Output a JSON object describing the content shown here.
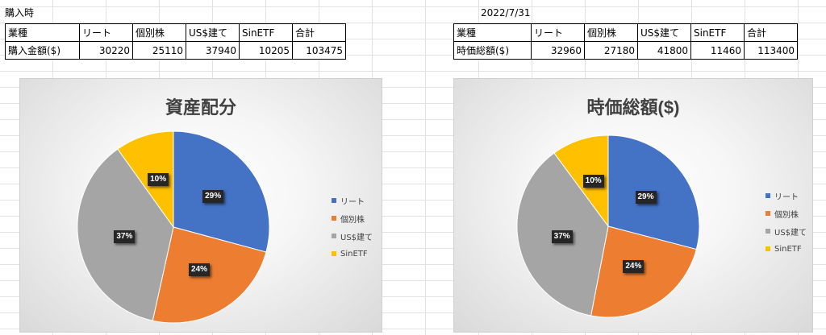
{
  "left": {
    "cell_label": "購入時",
    "table": {
      "headers": [
        "業種",
        "リート",
        "個別株",
        "US$建て",
        "SinETF",
        "合計"
      ],
      "row_label": "購入金額($)",
      "values": [
        "30220",
        "25110",
        "37940",
        "10205",
        "103475"
      ]
    }
  },
  "right": {
    "cell_label": "2022/7/31",
    "table": {
      "headers": [
        "業種",
        "リート",
        "個別株",
        "US$建て",
        "SinETF",
        "合計"
      ],
      "row_label": "時価総額($)",
      "values": [
        "32960",
        "27180",
        "41800",
        "11460",
        "113400"
      ]
    }
  },
  "colors": {
    "リート": "#4472c4",
    "個別株": "#ed7d31",
    "US$建て": "#a5a5a5",
    "SinETF": "#ffc000"
  },
  "chart_data": [
    {
      "type": "pie",
      "title": "資産配分",
      "categories": [
        "リート",
        "個別株",
        "US$建て",
        "SinETF"
      ],
      "values": [
        30220,
        25110,
        37940,
        10205
      ],
      "data_labels": [
        "29%",
        "24%",
        "37%",
        "10%"
      ],
      "legend": [
        "リート",
        "個別株",
        "US$建て",
        "SinETF"
      ],
      "legend_position": "right"
    },
    {
      "type": "pie",
      "title": "時価総額($)",
      "categories": [
        "リート",
        "個別株",
        "US$建て",
        "SinETF"
      ],
      "values": [
        32960,
        27180,
        41800,
        11460
      ],
      "data_labels": [
        "29%",
        "24%",
        "37%",
        "10%"
      ],
      "legend": [
        "リート",
        "個別株",
        "US$建て",
        "SinETF"
      ],
      "legend_position": "right"
    }
  ]
}
